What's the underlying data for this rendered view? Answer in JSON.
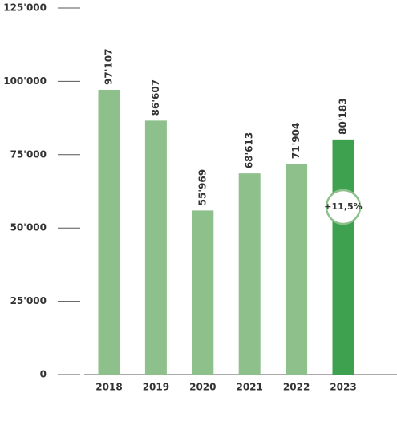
{
  "chart_data": {
    "type": "bar",
    "categories": [
      "2018",
      "2019",
      "2020",
      "2021",
      "2022",
      "2023"
    ],
    "values": [
      97107,
      86607,
      55969,
      68613,
      71904,
      80183
    ],
    "value_labels": [
      "97'107",
      "86'607",
      "55'969",
      "68'613",
      "71'904",
      "80'183"
    ],
    "colors": [
      "#8dc08a",
      "#8dc08a",
      "#8dc08a",
      "#8dc08a",
      "#8dc08a",
      "#3da14f"
    ],
    "ylim": [
      0,
      125000
    ],
    "yticks": [
      0,
      {
        "value": 25000,
        "label": "25'000"
      },
      {
        "value": 50000,
        "label": "50'000"
      },
      {
        "value": 75000,
        "label": "75'000"
      },
      {
        "value": 100000,
        "label": "100'000"
      },
      {
        "value": 125000,
        "label": "125'000"
      }
    ],
    "annotation": "+11,5%"
  }
}
